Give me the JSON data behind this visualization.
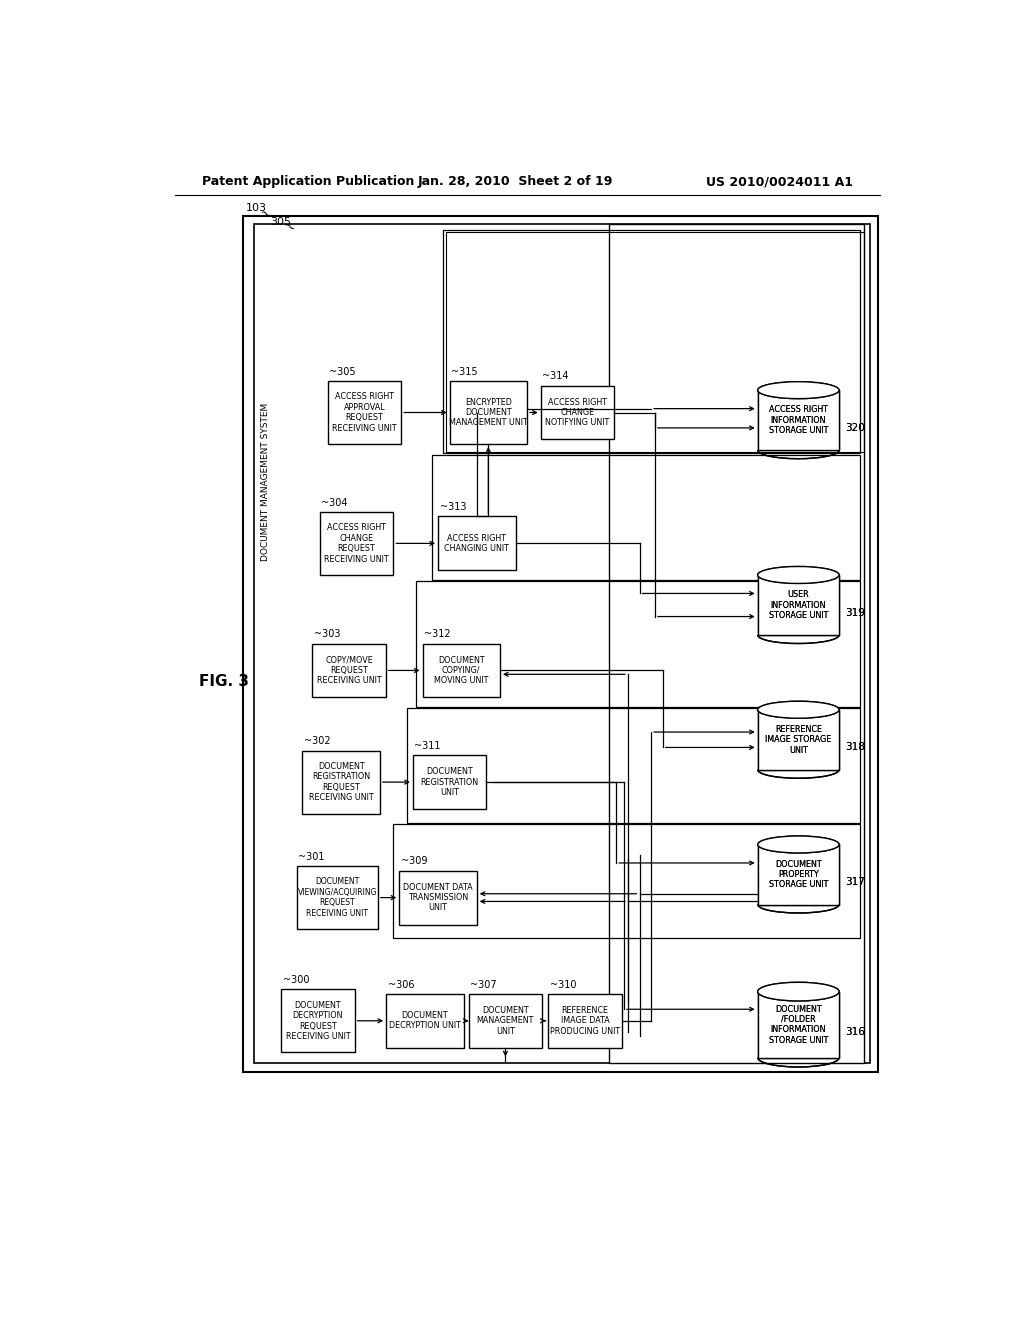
{
  "title_left": "Patent Application Publication",
  "title_center": "Jan. 28, 2010  Sheet 2 of 19",
  "title_right": "US 2010/0024011 A1",
  "fig_label": "FIG. 3",
  "background_color": "#ffffff"
}
